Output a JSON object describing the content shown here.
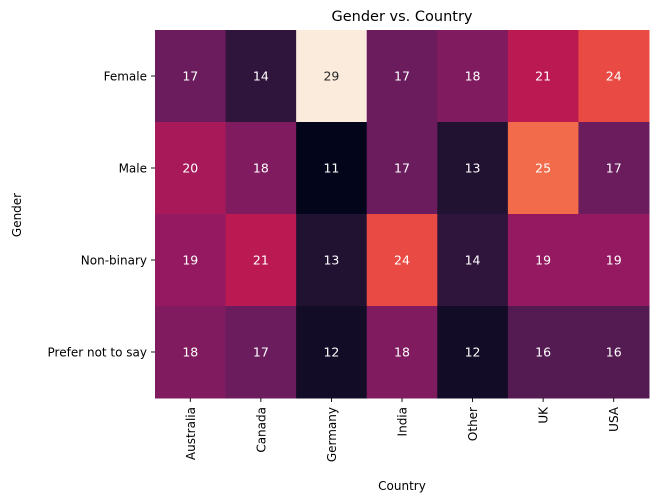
{
  "chart_data": {
    "type": "heatmap",
    "title": "Gender vs. Country",
    "xlabel": "Country",
    "ylabel": "Gender",
    "x_categories": [
      "Australia",
      "Canada",
      "Germany",
      "India",
      "Other",
      "UK",
      "USA"
    ],
    "y_categories": [
      "Female",
      "Male",
      "Non-binary",
      "Prefer not to say"
    ],
    "values": [
      [
        17,
        14,
        29,
        17,
        18,
        21,
        24
      ],
      [
        20,
        18,
        11,
        17,
        13,
        25,
        17
      ],
      [
        19,
        21,
        13,
        24,
        14,
        19,
        19
      ],
      [
        18,
        17,
        12,
        18,
        12,
        16,
        16
      ]
    ],
    "value_range": [
      11,
      29
    ],
    "colormap": "rocket",
    "colorbar": false,
    "grid": false
  }
}
